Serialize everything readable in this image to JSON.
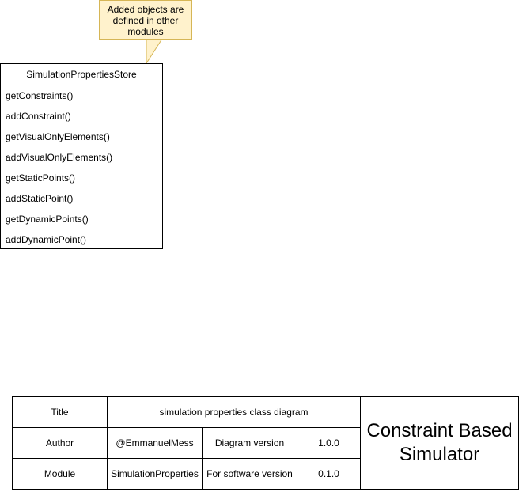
{
  "note": {
    "lines": [
      "Added objects are",
      "defined in other",
      "modules"
    ]
  },
  "class": {
    "name": "SimulationPropertiesStore",
    "methods": [
      "getConstraints()",
      "addConstraint()",
      "getVisualOnlyElements()",
      "addVisualOnlyElements()",
      "getStaticPoints()",
      "addStaticPoint()",
      "getDynamicPoints()",
      "addDynamicPoint()"
    ]
  },
  "info_table": {
    "title_label": "Title",
    "title_value": "simulation properties class diagram",
    "author_label": "Author",
    "author_value": "@EmmanuelMess",
    "diagram_version_label": "Diagram version",
    "diagram_version_value": "1.0.0",
    "module_label": "Module",
    "module_value": "SimulationProperties",
    "software_version_label": "For software version",
    "software_version_value": "0.1.0",
    "project_line1": "Constraint Based",
    "project_line2": "Simulator"
  }
}
